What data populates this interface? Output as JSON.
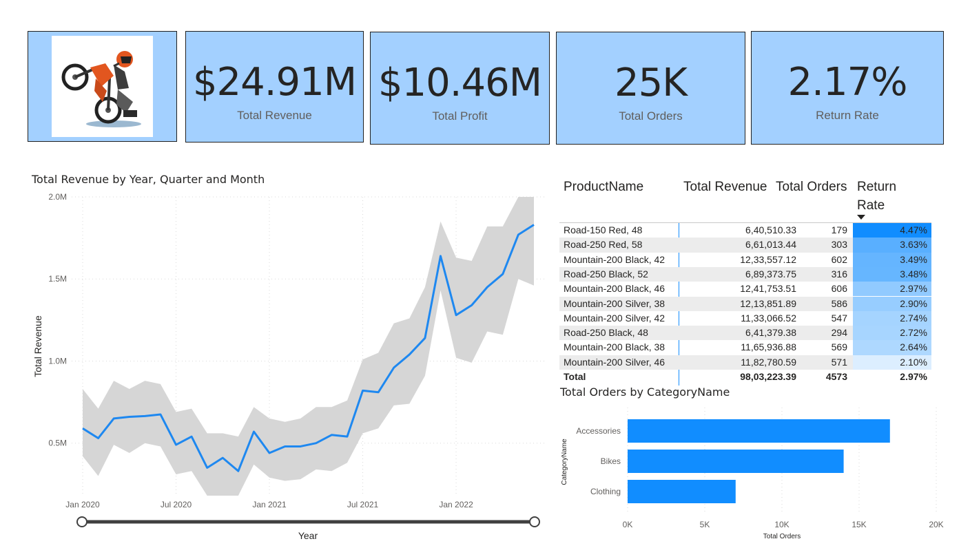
{
  "kpis": [
    {
      "value": "$24.91M",
      "label": "Total Revenue"
    },
    {
      "value": "$10.46M",
      "label": "Total Profit"
    },
    {
      "value": "25K",
      "label": "Total Orders"
    },
    {
      "value": "2.17%",
      "label": "Return Rate"
    }
  ],
  "logo": {
    "icon": "motorbike-rider-icon"
  },
  "revenue_chart": {
    "title": "Total Revenue by Year, Quarter and Month",
    "ylabel": "Total Revenue",
    "xlabel": "Year",
    "ytick_labels": [
      "0.5M",
      "1.0M",
      "1.5M",
      "2.0M"
    ],
    "xtick_labels": [
      "Jan 2020",
      "Jul 2020",
      "Jan 2021",
      "Jul 2021",
      "Jan 2022"
    ]
  },
  "chart_data": [
    {
      "type": "line",
      "title": "Total Revenue by Year, Quarter and Month",
      "xlabel": "Year",
      "ylabel": "Total Revenue",
      "ylim": [
        180000,
        2000000
      ],
      "x_ticks": [
        "Jan 2020",
        "Jul 2020",
        "Jan 2021",
        "Jul 2021",
        "Jan 2022"
      ],
      "x": [
        "2020-01",
        "2020-02",
        "2020-03",
        "2020-04",
        "2020-05",
        "2020-06",
        "2020-07",
        "2020-08",
        "2020-09",
        "2020-10",
        "2020-11",
        "2020-12",
        "2021-01",
        "2021-02",
        "2021-03",
        "2021-04",
        "2021-05",
        "2021-06",
        "2021-07",
        "2021-08",
        "2021-09",
        "2021-10",
        "2021-11",
        "2021-12",
        "2022-01",
        "2022-02",
        "2022-03",
        "2022-04",
        "2022-05",
        "2022-06"
      ],
      "series": [
        {
          "values": [
            590000,
            530000,
            650000,
            660000,
            665000,
            675000,
            490000,
            540000,
            350000,
            410000,
            330000,
            570000,
            440000,
            480000,
            480000,
            500000,
            550000,
            540000,
            820000,
            810000,
            960000,
            1040000,
            1140000,
            1640000,
            1280000,
            1340000,
            1450000,
            1530000,
            1770000,
            1830000
          ],
          "band_upper": [
            830000,
            710000,
            880000,
            830000,
            880000,
            860000,
            690000,
            710000,
            560000,
            560000,
            540000,
            720000,
            650000,
            630000,
            650000,
            720000,
            720000,
            760000,
            1010000,
            1050000,
            1230000,
            1260000,
            1450000,
            1850000,
            1630000,
            1610000,
            1820000,
            1820000,
            2000000,
            2000000
          ],
          "band_lower": [
            420000,
            300000,
            490000,
            440000,
            500000,
            480000,
            310000,
            330000,
            180000,
            180000,
            180000,
            370000,
            290000,
            270000,
            280000,
            340000,
            330000,
            380000,
            560000,
            590000,
            730000,
            740000,
            910000,
            1430000,
            1020000,
            990000,
            1180000,
            1160000,
            1500000,
            1460000
          ]
        }
      ]
    },
    {
      "type": "table",
      "columns": [
        "ProductName",
        "Total Revenue",
        "Total Orders",
        "Return Rate"
      ],
      "rows": [
        [
          "Road-150 Red, 48",
          "6,40,510.33",
          "179",
          "4.47%"
        ],
        [
          "Road-250 Red, 58",
          "6,61,013.44",
          "303",
          "3.63%"
        ],
        [
          "Mountain-200 Black, 42",
          "12,33,557.12",
          "602",
          "3.49%"
        ],
        [
          "Road-250 Black, 52",
          "6,89,373.75",
          "316",
          "3.48%"
        ],
        [
          "Mountain-200 Black, 46",
          "12,41,753.51",
          "606",
          "2.97%"
        ],
        [
          "Mountain-200 Silver, 38",
          "12,13,851.89",
          "586",
          "2.90%"
        ],
        [
          "Mountain-200 Silver, 42",
          "11,33,066.52",
          "547",
          "2.74%"
        ],
        [
          "Road-250 Black, 48",
          "6,41,379.38",
          "294",
          "2.72%"
        ],
        [
          "Mountain-200 Black, 38",
          "11,65,936.88",
          "569",
          "2.64%"
        ],
        [
          "Mountain-200 Silver, 46",
          "11,82,780.59",
          "571",
          "2.10%"
        ]
      ],
      "total": [
        "Total",
        "98,03,223.39",
        "4573",
        "2.97%"
      ],
      "return_rate_values": [
        4.47,
        3.63,
        3.49,
        3.48,
        2.97,
        2.9,
        2.74,
        2.72,
        2.64,
        2.1
      ],
      "sort": {
        "column": "Return Rate",
        "direction": "descending"
      }
    },
    {
      "type": "bar",
      "orientation": "horizontal",
      "title": "Total Orders by CategoryName",
      "xlabel": "Total Orders",
      "ylabel": "CategoryName",
      "categories": [
        "Accessories",
        "Bikes",
        "Clothing"
      ],
      "values": [
        17000,
        14000,
        7000
      ],
      "xlim": [
        0,
        20000
      ],
      "x_ticks": [
        "0K",
        "5K",
        "10K",
        "15K",
        "20K"
      ]
    }
  ],
  "table": {
    "headers": {
      "product": "ProductName",
      "revenue": "Total Revenue",
      "orders": "Total Orders",
      "return_rate_1": "Return",
      "return_rate_2": "Rate"
    },
    "sort_icon": "sort-descending-icon"
  },
  "colors": {
    "card_bg": "#a3d0ff",
    "line": "#1e88f0",
    "band": "#d6d6d6",
    "bar": "#118dff",
    "heat_high": "#118dff",
    "heat_low": "#dceeff"
  }
}
